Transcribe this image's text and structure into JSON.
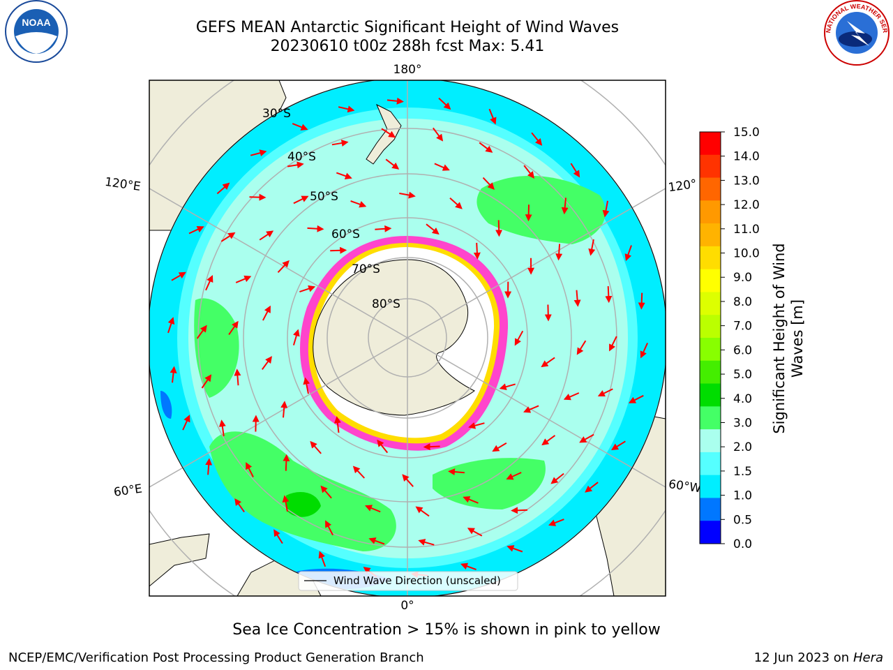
{
  "title": {
    "line1": "GEFS MEAN Antarctic Significant Height of Wind Waves",
    "line2": "20230610 t00z 288h fcst   Max: 5.41"
  },
  "subtitle": "Sea Ice Concentration > 15% is shown in pink to yellow",
  "footer": {
    "left": "NCEP/EMC/Verification Post Processing Product Generation Branch",
    "date": "12 Jun 2023 on",
    "machine": "Hera"
  },
  "map": {
    "longitude_labels": {
      "top": "180°",
      "bottom": "0°",
      "upper_left": "120°E",
      "upper_right": "120°",
      "lower_left": "60°E",
      "lower_right": "60°W"
    },
    "latitude_labels": [
      "30°S",
      "40°S",
      "50°S",
      "60°S",
      "70°S",
      "80°S"
    ],
    "legend_label": "Wind Wave Direction (unscaled)"
  },
  "colorbar": {
    "label_line1": "Significant Height of Wind",
    "label_line2": "Waves [m]",
    "ticks": [
      "15.0",
      "14.0",
      "13.0",
      "12.0",
      "11.0",
      "10.0",
      "9.0",
      "8.0",
      "7.0",
      "6.0",
      "5.0",
      "4.0",
      "3.0",
      "2.0",
      "1.5",
      "1.0",
      "0.5",
      "0.0"
    ],
    "colors": [
      "#ff0000",
      "#ff3300",
      "#ff6600",
      "#ff9900",
      "#ffb300",
      "#ffdd00",
      "#ffff00",
      "#ddff00",
      "#bbff00",
      "#88ff00",
      "#44ee00",
      "#00dd00",
      "#44ff66",
      "#aaffee",
      "#55ffff",
      "#00eeff",
      "#0077ff",
      "#0000ff"
    ]
  },
  "logos": {
    "noaa_text": "NOAA",
    "nws_text": "NATIONAL WEATHER SERVICE"
  },
  "colors": {
    "land": "#efedda",
    "ocean_light": "#aaffee",
    "ocean_cyan": "#55ffff",
    "ocean_blue": "#00eeff",
    "wave_green": "#44ff66",
    "sea_ice": "#ff44cc",
    "arrow": "#ff0000",
    "grid": "#b0b0b0"
  }
}
